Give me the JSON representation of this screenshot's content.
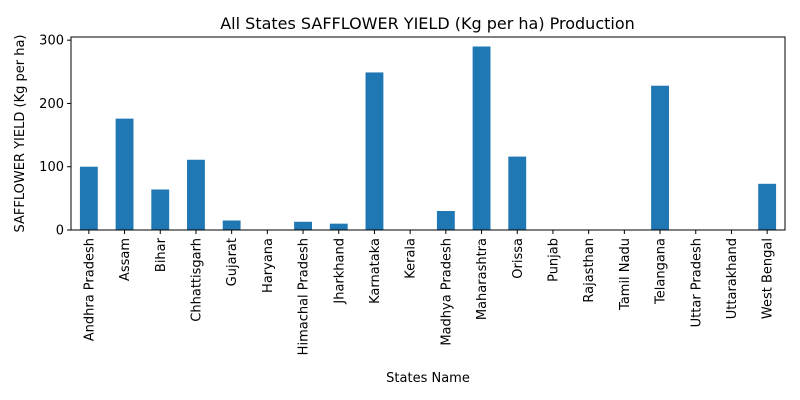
{
  "chart_data": {
    "type": "bar",
    "title": "All States SAFFLOWER YIELD (Kg per ha) Production",
    "xlabel": "States Name",
    "ylabel": "SAFFLOWER YIELD (Kg per ha)",
    "categories": [
      "Andhra Pradesh",
      "Assam",
      "Bihar",
      "Chhattisgarh",
      "Gujarat",
      "Haryana",
      "Himachal Pradesh",
      "Jharkhand",
      "Karnataka",
      "Kerala",
      "Madhya Pradesh",
      "Maharashtra",
      "Orissa",
      "Punjab",
      "Rajasthan",
      "Tamil Nadu",
      "Telangana",
      "Uttar Pradesh",
      "Uttarakhand",
      "West Bengal"
    ],
    "values": [
      100,
      176,
      64,
      111,
      15,
      0,
      13,
      10,
      249,
      0,
      30,
      290,
      116,
      0,
      0,
      0,
      228,
      0,
      0,
      73
    ],
    "ylim": [
      0,
      305
    ],
    "yticks": [
      0,
      100,
      200,
      300
    ],
    "bar_color": "#1f77b4",
    "grid": false,
    "legend": "none"
  }
}
